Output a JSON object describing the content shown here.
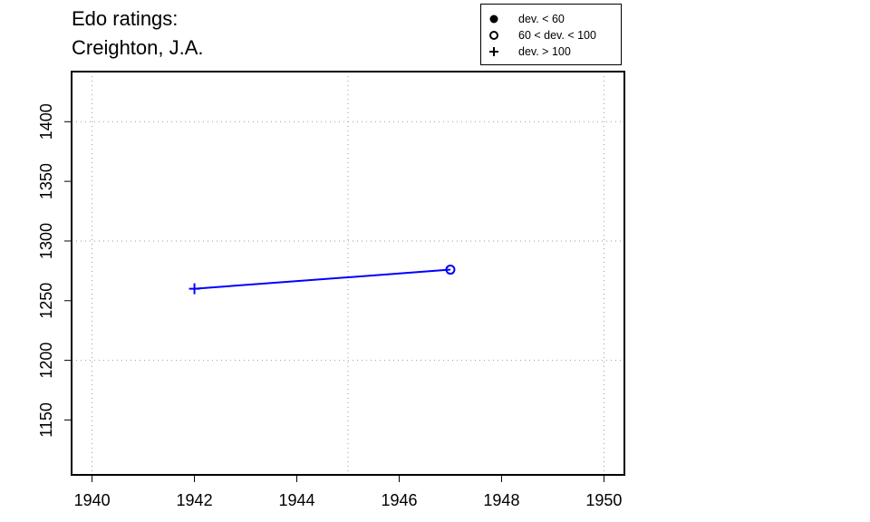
{
  "title_lines": [
    "Edo ratings:",
    "Creighton, J.A."
  ],
  "legend": [
    {
      "symbol": "filled-circle",
      "label": "dev. < 60"
    },
    {
      "symbol": "open-circle",
      "label": "60 < dev. < 100"
    },
    {
      "symbol": "plus",
      "label": "dev. > 100"
    }
  ],
  "colors": {
    "series": "#0000ff",
    "axis": "#000000",
    "grid": "#999999"
  },
  "chart_data": {
    "type": "line",
    "title": "Edo ratings: Creighton, J.A.",
    "xlabel": "",
    "ylabel": "",
    "xlim": [
      1939.6,
      1950.4
    ],
    "ylim": [
      1104,
      1442
    ],
    "x_ticks": [
      1940,
      1942,
      1944,
      1946,
      1948,
      1950
    ],
    "y_ticks": [
      1150,
      1200,
      1250,
      1300,
      1350,
      1400
    ],
    "grid_x": [
      1940,
      1945,
      1950
    ],
    "grid_y": [
      1200,
      1300,
      1400
    ],
    "grid": true,
    "legend_position": "top-right",
    "series": [
      {
        "points": [
          {
            "x": 1942,
            "y": 1260,
            "marker": "plus"
          },
          {
            "x": 1947,
            "y": 1276,
            "marker": "open-circle"
          }
        ]
      }
    ]
  }
}
